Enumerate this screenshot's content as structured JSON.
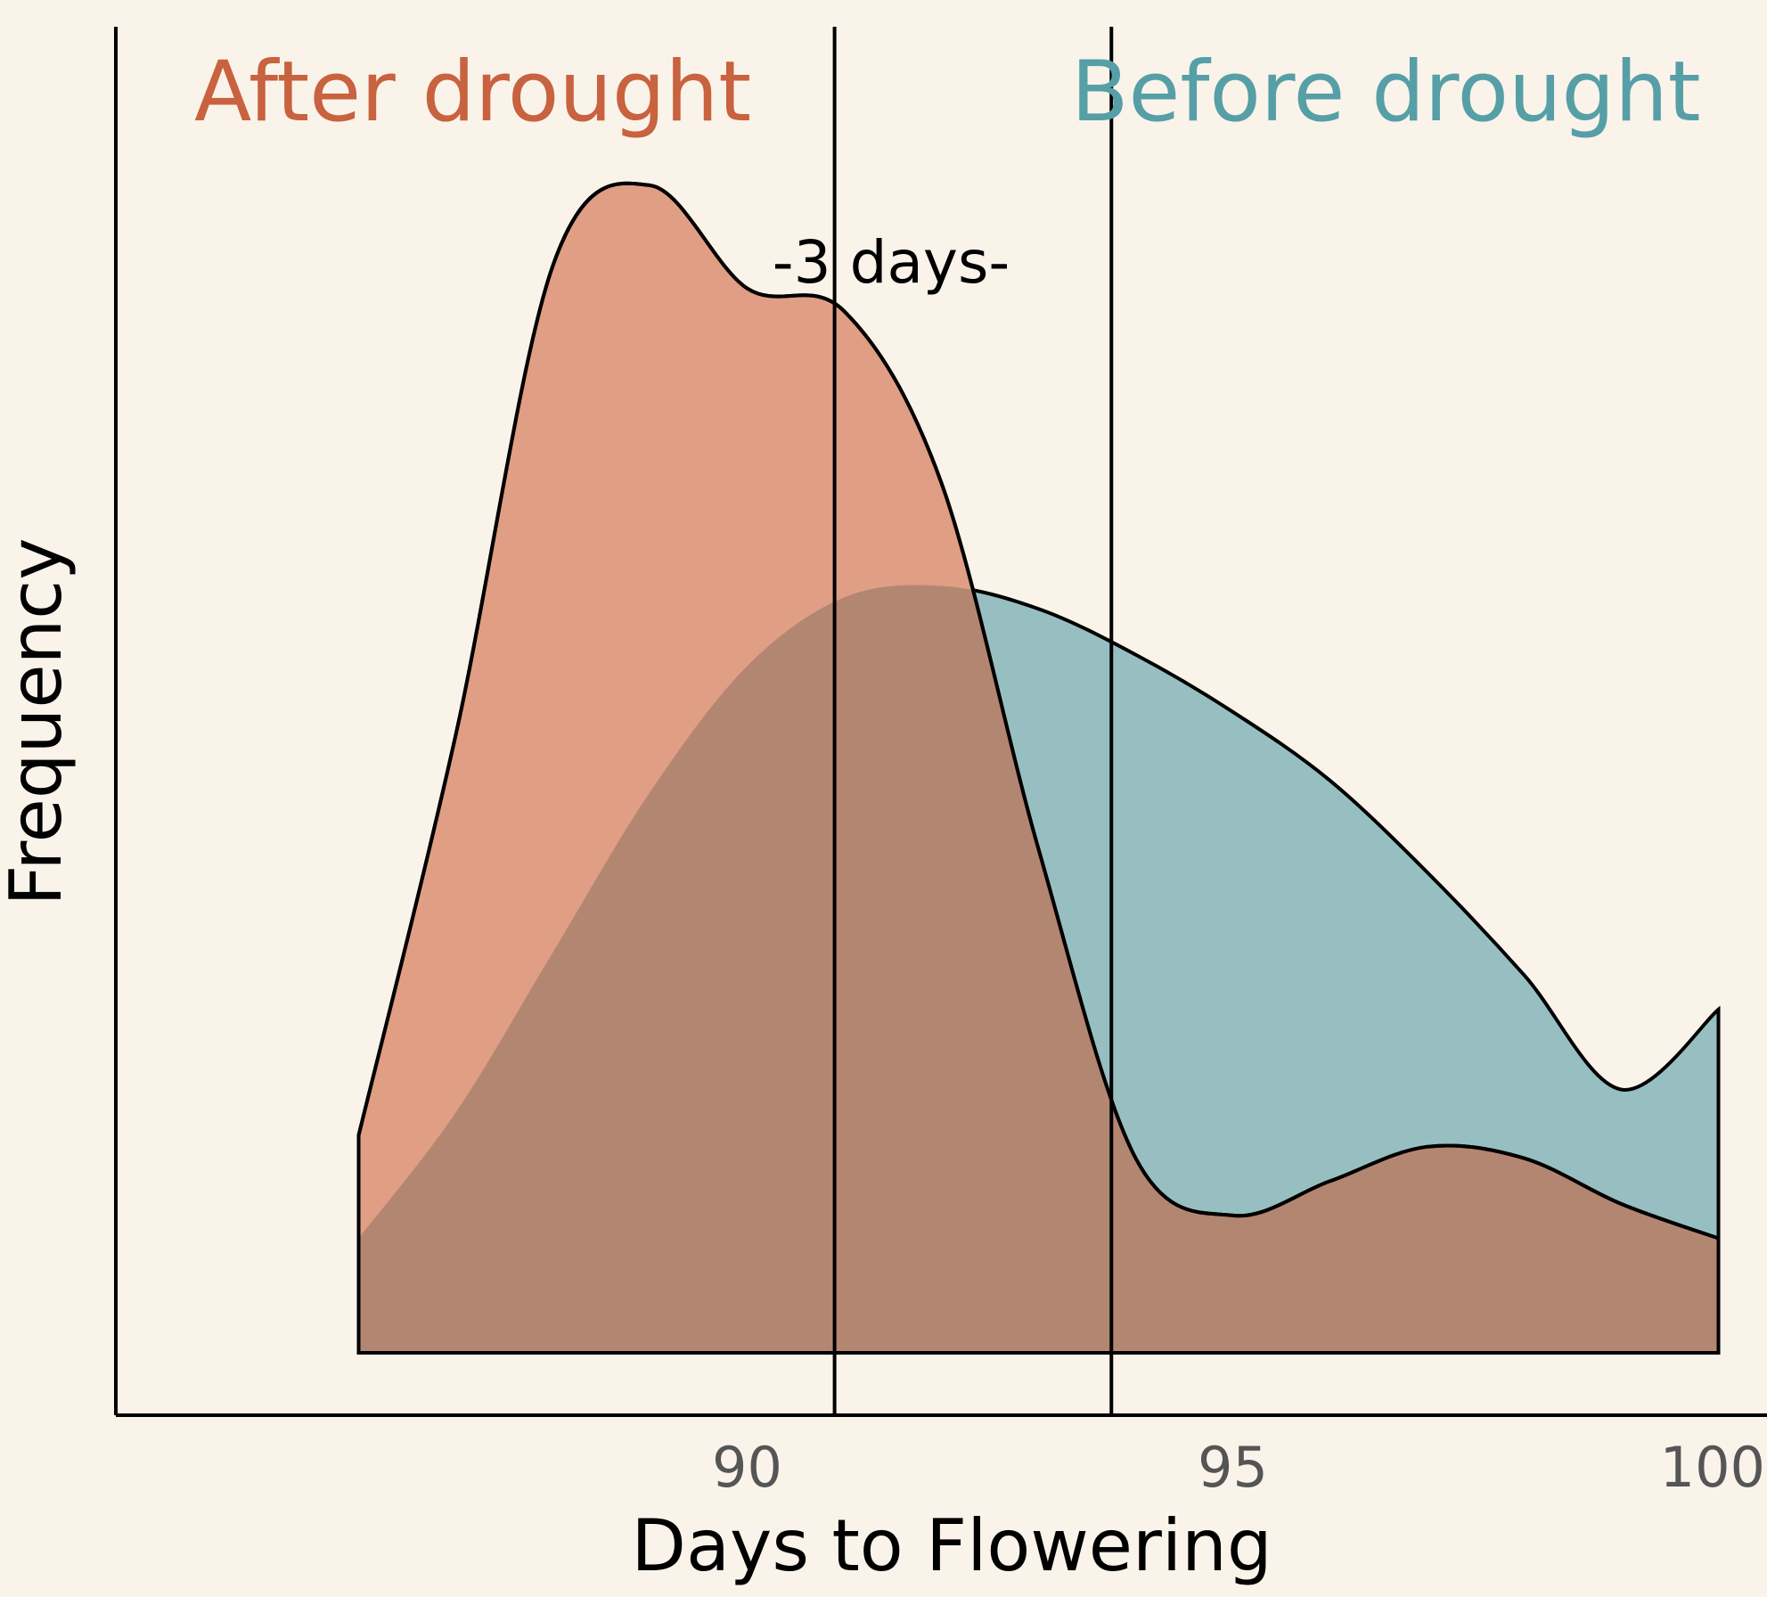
{
  "chart_data": {
    "type": "area",
    "xlabel": "Days to Flowering",
    "ylabel": "Frequency",
    "xlim": [
      83.5,
      100.5
    ],
    "ylim": [
      0,
      1.1
    ],
    "x_ticks": [
      90,
      95,
      100
    ],
    "x_tick_labels": [
      "90",
      "95",
      "100"
    ],
    "grid": false,
    "legend_placement": "top",
    "series": [
      {
        "name": "Before drought",
        "color": "#569fa6",
        "fill": "#97bfc2",
        "x": [
          86,
          87,
          88,
          89,
          90,
          91,
          92,
          93,
          94,
          95,
          96,
          97,
          98,
          99,
          100
        ],
        "y": [
          0.1,
          0.21,
          0.35,
          0.49,
          0.6,
          0.66,
          0.67,
          0.65,
          0.61,
          0.56,
          0.5,
          0.42,
          0.33,
          0.23,
          0.3
        ]
      },
      {
        "name": "After drought",
        "color": "#c8623f",
        "fill": "#e09e84",
        "x": [
          86,
          87,
          88,
          89,
          90,
          91,
          92,
          93,
          94,
          95,
          96,
          97,
          98,
          99,
          100
        ],
        "y": [
          0.19,
          0.54,
          0.95,
          1.02,
          0.93,
          0.91,
          0.76,
          0.44,
          0.17,
          0.12,
          0.15,
          0.18,
          0.17,
          0.13,
          0.1
        ]
      }
    ],
    "overlap_fill": "#b38672",
    "vertical_lines": [
      {
        "label": "After drought",
        "x": 90.9
      },
      {
        "label": "Before drought",
        "x": 93.75
      }
    ],
    "annotation": "-3 days-"
  }
}
